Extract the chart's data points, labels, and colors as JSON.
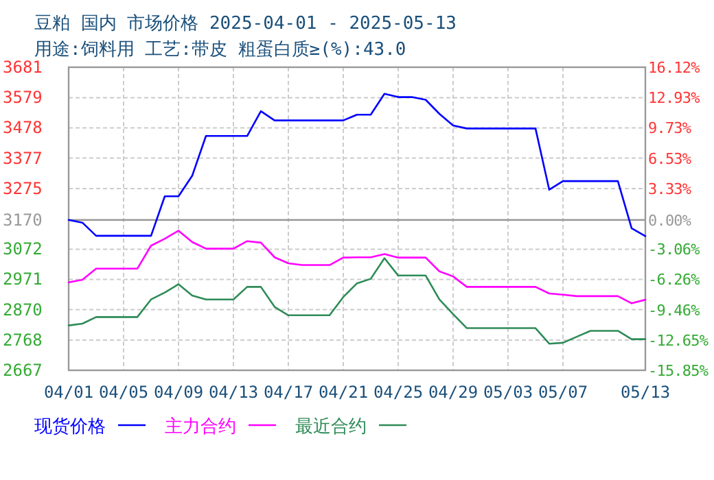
{
  "chart_data": {
    "type": "line",
    "title": "豆粕 国内 市场价格 2025-04-01 - 2025-05-13",
    "subtitle": "用途:饲料用 工艺:带皮 粗蛋白质≥(%):43.0",
    "x": [
      "2025-04-01",
      "2025-04-02",
      "2025-04-03",
      "2025-04-04",
      "2025-04-05",
      "2025-04-06",
      "2025-04-07",
      "2025-04-08",
      "2025-04-09",
      "2025-04-10",
      "2025-04-11",
      "2025-04-12",
      "2025-04-13",
      "2025-04-14",
      "2025-04-15",
      "2025-04-16",
      "2025-04-17",
      "2025-04-18",
      "2025-04-19",
      "2025-04-20",
      "2025-04-21",
      "2025-04-22",
      "2025-04-23",
      "2025-04-24",
      "2025-04-25",
      "2025-04-26",
      "2025-04-27",
      "2025-04-28",
      "2025-04-29",
      "2025-04-30",
      "2025-05-01",
      "2025-05-02",
      "2025-05-03",
      "2025-05-04",
      "2025-05-05",
      "2025-05-06",
      "2025-05-07",
      "2025-05-08",
      "2025-05-09",
      "2025-05-10",
      "2025-05-11",
      "2025-05-12",
      "2025-05-13"
    ],
    "series": [
      {
        "name": "现货价格",
        "color": "#0000ff",
        "values": [
          3170,
          3161,
          3117,
          3117,
          3117,
          3117,
          3117,
          3249,
          3249,
          3318,
          3451,
          3451,
          3451,
          3451,
          3534,
          3503,
          3503,
          3503,
          3503,
          3503,
          3503,
          3522,
          3522,
          3592,
          3581,
          3581,
          3572,
          3525,
          3486,
          3476,
          3476,
          3476,
          3476,
          3476,
          3476,
          3271,
          3300,
          3300,
          3300,
          3300,
          3300,
          3142,
          3116
        ]
      },
      {
        "name": "主力合约",
        "color": "#ff00ff",
        "values": [
          2961,
          2970,
          3007,
          3007,
          3007,
          3007,
          3084,
          3107,
          3134,
          3096,
          3074,
          3074,
          3074,
          3099,
          3094,
          3045,
          3025,
          3019,
          3019,
          3019,
          3044,
          3045,
          3045,
          3056,
          3044,
          3044,
          3044,
          2998,
          2981,
          2946,
          2946,
          2946,
          2946,
          2946,
          2946,
          2924,
          2920,
          2915,
          2915,
          2915,
          2915,
          2891,
          2903
        ]
      },
      {
        "name": "最近合约",
        "color": "#2e8b57",
        "values": [
          2817,
          2823,
          2845,
          2845,
          2845,
          2845,
          2904,
          2927,
          2955,
          2917,
          2904,
          2904,
          2904,
          2946,
          2946,
          2879,
          2851,
          2851,
          2851,
          2851,
          2912,
          2958,
          2973,
          3042,
          2984,
          2984,
          2984,
          2904,
          2855,
          2808,
          2808,
          2808,
          2808,
          2808,
          2808,
          2756,
          2759,
          2779,
          2799,
          2799,
          2799,
          2771,
          2771
        ]
      }
    ],
    "xlim": [
      "2025-04-01",
      "2025-05-13"
    ],
    "xticks": [
      {
        "value": "2025-04-01",
        "label": "04/01"
      },
      {
        "value": "2025-04-05",
        "label": "04/05"
      },
      {
        "value": "2025-04-09",
        "label": "04/09"
      },
      {
        "value": "2025-04-13",
        "label": "04/13"
      },
      {
        "value": "2025-04-17",
        "label": "04/17"
      },
      {
        "value": "2025-04-21",
        "label": "04/21"
      },
      {
        "value": "2025-04-25",
        "label": "04/25"
      },
      {
        "value": "2025-04-29",
        "label": "04/29"
      },
      {
        "value": "2025-05-03",
        "label": "05/03"
      },
      {
        "value": "2025-05-07",
        "label": "05/07"
      },
      {
        "value": "2025-05-13",
        "label": "05/13"
      }
    ],
    "ylim": [
      2667,
      3681
    ],
    "yticks": [
      2667,
      2768,
      2870,
      2971,
      3072,
      3170,
      3275,
      3377,
      3478,
      3579,
      3681
    ],
    "y2lim": [
      -15.85,
      16.12
    ],
    "y2ticks": [
      {
        "value": -15.85,
        "label": "-15.85%"
      },
      {
        "value": -12.65,
        "label": "-12.65%"
      },
      {
        "value": -9.46,
        "label": "-9.46%"
      },
      {
        "value": -6.26,
        "label": "-6.26%"
      },
      {
        "value": -3.06,
        "label": "-3.06%"
      },
      {
        "value": 0,
        "label": "0.00%"
      },
      {
        "value": 3.33,
        "label": "3.33%"
      },
      {
        "value": 6.53,
        "label": "6.53%"
      },
      {
        "value": 9.73,
        "label": "9.73%"
      },
      {
        "value": 12.93,
        "label": "12.93%"
      },
      {
        "value": 16.12,
        "label": "16.12%"
      }
    ],
    "ref_lines": [
      {
        "axis": "y",
        "value": 3170,
        "color": "#999999",
        "line_style": "solid"
      }
    ],
    "grid": true,
    "legend": "bottom",
    "marker": "none",
    "line_style": "solid"
  }
}
